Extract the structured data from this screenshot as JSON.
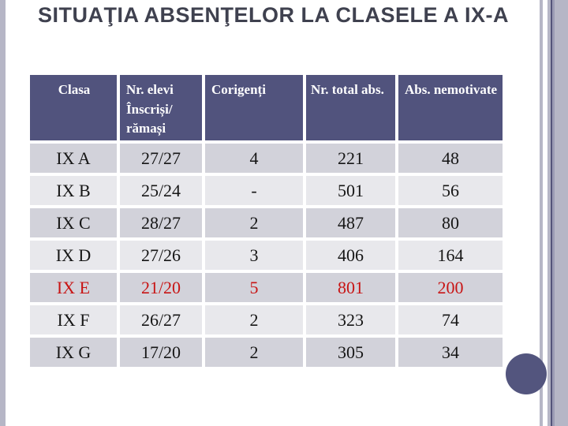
{
  "slide": {
    "title": "SITUAŢIA ABSENŢELOR LA CLASELE A IX-A"
  },
  "table": {
    "headers": [
      "Clasa",
      "Nr. elevi Înscriși/ rămași",
      "Corigenți",
      "Nr. total abs.",
      "Abs. nemotivate"
    ],
    "rows": [
      {
        "cells": [
          "IX A",
          "27/27",
          "4",
          "221",
          "48"
        ],
        "highlight": false
      },
      {
        "cells": [
          "IX B",
          "25/24",
          "-",
          "501",
          "56"
        ],
        "highlight": false
      },
      {
        "cells": [
          "IX C",
          "28/27",
          "2",
          "487",
          "80"
        ],
        "highlight": false
      },
      {
        "cells": [
          "IX D",
          "27/26",
          "3",
          "406",
          "164"
        ],
        "highlight": false
      },
      {
        "cells": [
          "IX E",
          "21/20",
          "5",
          "801",
          "200"
        ],
        "highlight": true
      },
      {
        "cells": [
          "IX F",
          "26/27",
          "2",
          "323",
          "74"
        ],
        "highlight": false
      },
      {
        "cells": [
          "IX G",
          "17/20",
          "2",
          "305",
          "34"
        ],
        "highlight": false
      }
    ]
  },
  "colors": {
    "header_bg": "#51537d",
    "row_dark": "#d2d2da",
    "row_light": "#e8e8ec",
    "highlight_text": "#c81414",
    "title_color": "#3f414f",
    "stripe_lavender": "#b6b6c6",
    "stripe_dark": "#54547a",
    "circle_color": "#53557e"
  }
}
